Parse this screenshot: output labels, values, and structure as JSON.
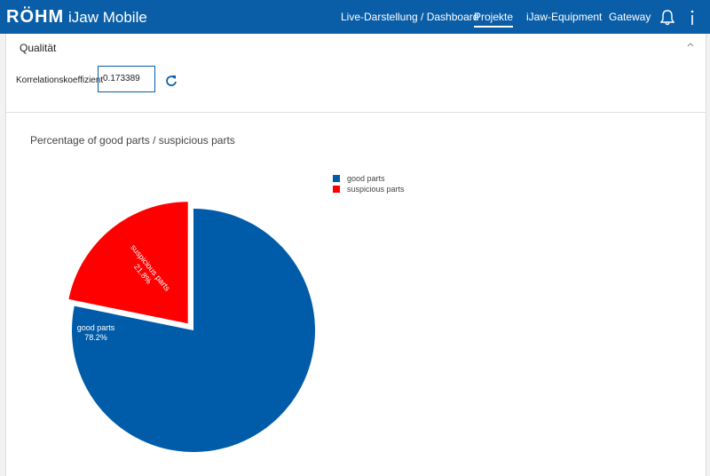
{
  "header": {
    "logo": "RÖHM",
    "app_name": "iJaw Mobile",
    "nav": [
      "Live-Darstellung / Dashboard",
      "Projekte",
      "iJaw-Equipment",
      "Gateway"
    ],
    "active_nav": 1
  },
  "panel": {
    "title": "Qualität",
    "field_label": "Korrelationskoeffizient",
    "field_value": "0.173389"
  },
  "chart_data": {
    "type": "pie",
    "title": "Percentage of good parts / suspicious parts",
    "categories": [
      "good parts",
      "suspicious parts"
    ],
    "values": [
      78.2,
      21.8
    ],
    "value_labels": [
      "78.2%",
      "21.8%"
    ],
    "colors": [
      "#005ca9",
      "#ff0000"
    ],
    "legend": "top-right"
  }
}
